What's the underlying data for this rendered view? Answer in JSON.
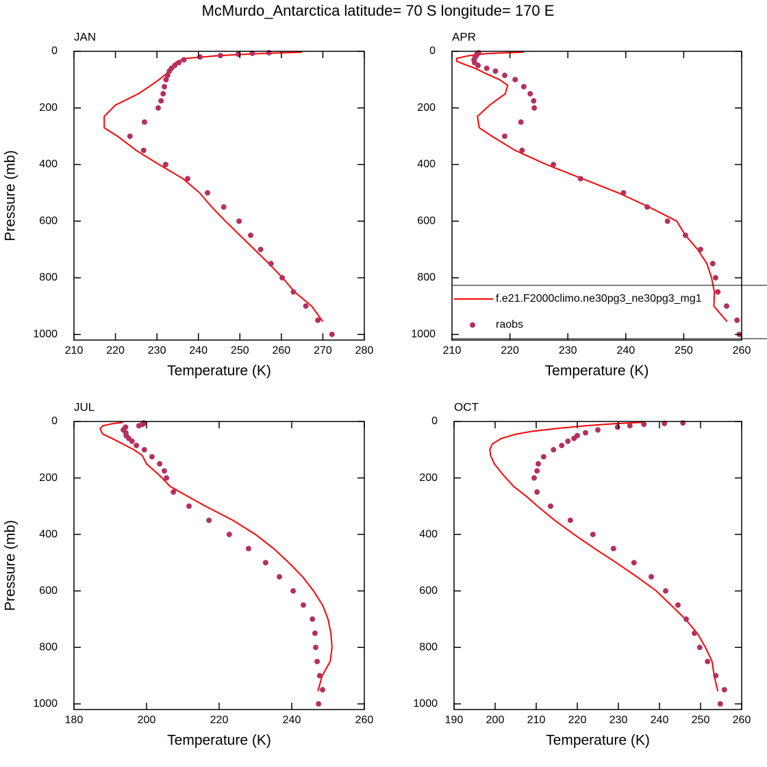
{
  "title": "McMurdo_Antarctica  latitude= 70 S longitude= 170 E",
  "chart_data": [
    {
      "type": "line",
      "label": "JAN",
      "xlabel": "Temperature (K)",
      "ylabel": "Pressure (mb)",
      "xlim": [
        210,
        280
      ],
      "xticks": [
        210,
        220,
        230,
        240,
        250,
        260,
        270,
        280
      ],
      "ylim": [
        1020,
        0
      ],
      "yticks": [
        0,
        200,
        400,
        600,
        800,
        1000
      ],
      "series": [
        {
          "mode": "line",
          "color": "#ff0000",
          "x": [
            270,
            267.3,
            263.2,
            260.3,
            257,
            253.5,
            250,
            246.5,
            243.2,
            240.3,
            236.3,
            230.5,
            225,
            220.5,
            217.3,
            217.3,
            220,
            225.5,
            228.6,
            230.5,
            232.2,
            233.5,
            234,
            235,
            237,
            245,
            255,
            265
          ],
          "y": [
            955,
            900,
            850,
            800,
            750,
            700,
            650,
            600,
            550,
            500,
            450,
            400,
            350,
            300,
            270,
            230,
            190,
            150,
            120,
            100,
            80,
            60,
            45,
            35,
            25,
            15,
            8,
            3
          ]
        },
        {
          "mode": "markers",
          "color": "#b5305f",
          "x": [
            272.2,
            268.8,
            265.9,
            262.9,
            260.2,
            257.5,
            255.0,
            252.6,
            249.8,
            246.1,
            242.2,
            237.4,
            232.1,
            226.8,
            223.5,
            227.0,
            230.3,
            231.0,
            231.5,
            231.8,
            232.2,
            232.6,
            233.0,
            233.5,
            234.3,
            235.3,
            236.5,
            240.4,
            245.3,
            249.6,
            253.0,
            257.0
          ],
          "y": [
            1000,
            950,
            900,
            850,
            800,
            750,
            700,
            650,
            600,
            550,
            500,
            450,
            400,
            350,
            300,
            250,
            200,
            175,
            150,
            125,
            100,
            85,
            70,
            60,
            50,
            40,
            30,
            20,
            15,
            10,
            7,
            5
          ]
        }
      ]
    },
    {
      "type": "line",
      "label": "APR",
      "xlabel": "Temperature (K)",
      "xlim": [
        210,
        260
      ],
      "xticks": [
        210,
        220,
        230,
        240,
        250,
        260
      ],
      "ylim": [
        1020,
        0
      ],
      "yticks": [
        0,
        200,
        400,
        600,
        800,
        1000
      ],
      "legend": "lower right",
      "series": [
        {
          "name": "f.e21.F2000climo.ne30pg3_ne30pg3_mg1",
          "mode": "line",
          "color": "#ff0000",
          "x": [
            257.5,
            255.2,
            255.3,
            254.8,
            254,
            252.4,
            250.3,
            248.8,
            244,
            238.7,
            232.5,
            226.3,
            220.9,
            216.9,
            214.7,
            214.4,
            216.5,
            219.2,
            219.6,
            218.2,
            216,
            214,
            212,
            210.8,
            210.8,
            213,
            216,
            222.4
          ],
          "y": [
            955,
            900,
            850,
            800,
            750,
            700,
            650,
            600,
            550,
            500,
            450,
            400,
            350,
            300,
            270,
            230,
            190,
            150,
            120,
            100,
            80,
            60,
            45,
            35,
            25,
            15,
            8,
            3
          ]
        },
        {
          "name": "raobs",
          "mode": "markers",
          "color": "#b5305f",
          "x": [
            259.6,
            259.2,
            257.4,
            255.9,
            255.5,
            255.0,
            252.9,
            250.3,
            247.2,
            243.7,
            239.6,
            232.2,
            227.5,
            222.1,
            219.1,
            221.9,
            224.2,
            224.1,
            223.5,
            222.4,
            220.9,
            219.1,
            217.5,
            216.0,
            214.5,
            213.9,
            213.8,
            214.0,
            214.2,
            214.3,
            214.5,
            214.6
          ],
          "y": [
            1000,
            950,
            900,
            850,
            800,
            750,
            700,
            650,
            600,
            550,
            500,
            450,
            400,
            350,
            300,
            250,
            200,
            175,
            150,
            125,
            100,
            85,
            70,
            60,
            50,
            40,
            30,
            20,
            15,
            10,
            7,
            5
          ]
        }
      ]
    },
    {
      "type": "line",
      "label": "JUL",
      "xlabel": "Temperature (K)",
      "ylabel": "Pressure (mb)",
      "xlim": [
        180,
        260
      ],
      "xticks": [
        180,
        200,
        220,
        240,
        260
      ],
      "ylim": [
        1020,
        0
      ],
      "yticks": [
        0,
        200,
        400,
        600,
        800,
        1000
      ],
      "series": [
        {
          "mode": "line",
          "color": "#ff0000",
          "x": [
            247.2,
            248.4,
            250.6,
            251.1,
            250.8,
            250,
            248.5,
            246,
            243,
            239.2,
            235,
            230,
            223.8,
            216.2,
            212,
            206.5,
            203.5,
            200,
            198.8,
            196.5,
            193.5,
            190.5,
            188,
            187.5,
            187.2,
            188,
            190.5,
            193.5
          ],
          "y": [
            955,
            900,
            850,
            800,
            750,
            700,
            650,
            600,
            550,
            500,
            450,
            400,
            350,
            300,
            270,
            230,
            190,
            150,
            120,
            100,
            80,
            60,
            45,
            35,
            25,
            15,
            8,
            3
          ]
        },
        {
          "mode": "markers",
          "color": "#b5305f",
          "x": [
            247.4,
            248.5,
            247.7,
            247.0,
            246.6,
            246.4,
            245.7,
            243.2,
            240.4,
            236.6,
            232.8,
            228.1,
            222.8,
            217.2,
            211.7,
            207.4,
            205.5,
            204.9,
            203.6,
            201.5,
            199.4,
            197.2,
            196.0,
            195.1,
            194.4,
            194.3,
            193.6,
            194.2,
            197.9,
            198.9,
            199.2,
            199.2
          ],
          "y": [
            1000,
            950,
            900,
            850,
            800,
            750,
            700,
            650,
            600,
            550,
            500,
            450,
            400,
            350,
            300,
            250,
            200,
            175,
            150,
            125,
            100,
            85,
            70,
            60,
            50,
            40,
            30,
            20,
            15,
            10,
            7,
            5
          ]
        }
      ]
    },
    {
      "type": "line",
      "label": "OCT",
      "xlabel": "Temperature (K)",
      "xlim": [
        190,
        260
      ],
      "xticks": [
        190,
        200,
        210,
        220,
        230,
        240,
        250,
        260
      ],
      "ylim": [
        1020,
        0
      ],
      "yticks": [
        0,
        200,
        400,
        600,
        800,
        1000
      ],
      "series": [
        {
          "mode": "line",
          "color": "#ff0000",
          "x": [
            254.2,
            253.3,
            252.8,
            251.2,
            249.2,
            246.3,
            242.8,
            239.2,
            234.5,
            229.5,
            224.2,
            219.2,
            214.5,
            210.3,
            208,
            204.5,
            202,
            199.8,
            198.9,
            198.7,
            199.3,
            201.5,
            205,
            209,
            215,
            222,
            229,
            236
          ],
          "y": [
            955,
            900,
            850,
            800,
            750,
            700,
            650,
            600,
            550,
            500,
            450,
            400,
            350,
            300,
            270,
            230,
            190,
            150,
            120,
            100,
            80,
            60,
            45,
            35,
            25,
            15,
            8,
            3
          ]
        },
        {
          "mode": "markers",
          "color": "#b5305f",
          "x": [
            254.8,
            255.8,
            253.7,
            251.7,
            249.8,
            248.5,
            246.5,
            244.5,
            241.5,
            238.0,
            233.8,
            228.8,
            223.8,
            218.3,
            213.5,
            210.2,
            209.5,
            210.2,
            210.5,
            211.8,
            214.2,
            216.2,
            217.7,
            219.2,
            220.0,
            222.0,
            225.0,
            229.8,
            232.8,
            236.2,
            241.2,
            245.7
          ],
          "y": [
            1000,
            950,
            900,
            850,
            800,
            750,
            700,
            650,
            600,
            550,
            500,
            450,
            400,
            350,
            300,
            250,
            200,
            175,
            150,
            125,
            100,
            85,
            70,
            60,
            50,
            40,
            30,
            20,
            15,
            10,
            7,
            5
          ]
        }
      ]
    }
  ]
}
